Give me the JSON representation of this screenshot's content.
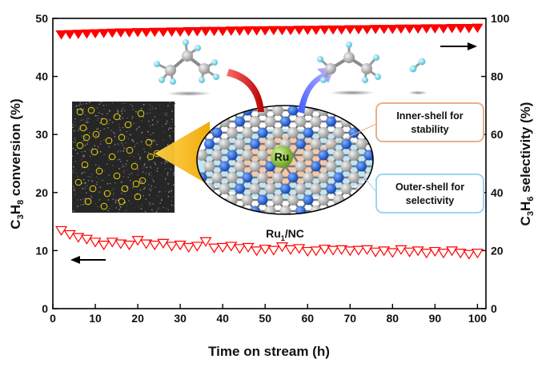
{
  "chart_data": {
    "type": "scatter",
    "xlabel": "Time on stream",
    "xlabel_unit": "h",
    "ylabel_left": {
      "base": "C",
      "sub1": "3",
      "mid": "H",
      "sub2": "8",
      "tail": " conversion (%)"
    },
    "ylabel_right": {
      "base": "C",
      "sub1": "3",
      "mid": "H",
      "sub2": "6",
      "tail": " selectivity (%)"
    },
    "xlim": [
      0,
      102
    ],
    "ylim_left": [
      0,
      50
    ],
    "ylim_right": [
      0,
      100
    ],
    "xticks": [
      0,
      10,
      20,
      30,
      40,
      50,
      60,
      70,
      80,
      90,
      100
    ],
    "yticks_left": [
      0,
      10,
      20,
      30,
      40,
      50
    ],
    "yticks_right": [
      0,
      20,
      40,
      60,
      80,
      100
    ],
    "grid": false,
    "series": [
      {
        "axis": "right",
        "marker": "filled-down-triangle",
        "color": "#ff0000",
        "x": [
          2,
          4,
          6,
          8,
          10,
          12,
          14,
          16,
          18,
          20,
          22,
          24,
          26,
          28,
          30,
          32,
          34,
          36,
          38,
          40,
          42,
          44,
          46,
          48,
          50,
          52,
          54,
          56,
          58,
          60,
          62,
          64,
          66,
          68,
          70,
          72,
          74,
          76,
          78,
          80,
          82,
          84,
          86,
          88,
          90,
          92,
          94,
          96,
          98,
          100
        ],
        "values": [
          94.5,
          94.6,
          94.7,
          94.8,
          94.9,
          95.0,
          95.1,
          95.2,
          95.2,
          95.3,
          95.3,
          95.4,
          95.4,
          95.5,
          95.5,
          95.6,
          95.6,
          95.7,
          95.7,
          95.7,
          95.8,
          95.8,
          95.9,
          95.9,
          95.9,
          96.0,
          96.0,
          96.0,
          96.1,
          96.1,
          96.1,
          96.2,
          96.2,
          96.2,
          96.3,
          96.3,
          96.3,
          96.4,
          96.4,
          96.4,
          96.5,
          96.5,
          96.5,
          96.6,
          96.6,
          96.6,
          96.7,
          96.7,
          96.7,
          96.8
        ]
      },
      {
        "axis": "left",
        "marker": "open-down-triangle",
        "color": "#ff0000",
        "x": [
          2,
          4,
          6,
          8,
          10,
          12,
          14,
          16,
          18,
          20,
          22,
          24,
          26,
          28,
          30,
          32,
          34,
          36,
          38,
          40,
          42,
          44,
          46,
          48,
          50,
          52,
          54,
          56,
          58,
          60,
          62,
          64,
          66,
          68,
          70,
          72,
          74,
          76,
          78,
          80,
          82,
          84,
          86,
          88,
          90,
          92,
          94,
          96,
          98,
          100
        ],
        "values": [
          13.5,
          12.8,
          12.3,
          12.0,
          11.5,
          11.0,
          11.5,
          11.2,
          11.0,
          11.8,
          11.2,
          11.0,
          11.3,
          10.8,
          11.0,
          10.6,
          10.8,
          11.6,
          10.5,
          10.6,
          10.8,
          10.4,
          10.6,
          10.0,
          10.3,
          10.1,
          10.7,
          10.2,
          10.4,
          9.9,
          10.0,
          10.3,
          10.1,
          10.2,
          10.0,
          10.1,
          10.2,
          9.8,
          10.0,
          9.7,
          10.2,
          9.8,
          10.0,
          9.6,
          9.9,
          9.6,
          10.0,
          9.6,
          9.4,
          9.6
        ]
      }
    ],
    "annotations": {
      "catalyst_label": {
        "base": "Ru",
        "sub": "1",
        "tail": "/NC"
      },
      "metal_center": "Ru",
      "inner_shell": [
        "Inner-shell for",
        "stability"
      ],
      "outer_shell": [
        "Outer-shell for",
        "selectivity"
      ],
      "left_arrow": "points to left axis (conversion)",
      "right_arrow": "points to right axis (selectivity)"
    },
    "colors": {
      "series": "#ff0000",
      "inner_shell_border": "#e8b08a",
      "outer_shell_border": "#9fd4ee",
      "carbon": "#a8a8a8",
      "nitrogen": "#1e5fd6",
      "ruthenium": "#8cc63f",
      "hydrogen": "#7fd8e8"
    }
  }
}
